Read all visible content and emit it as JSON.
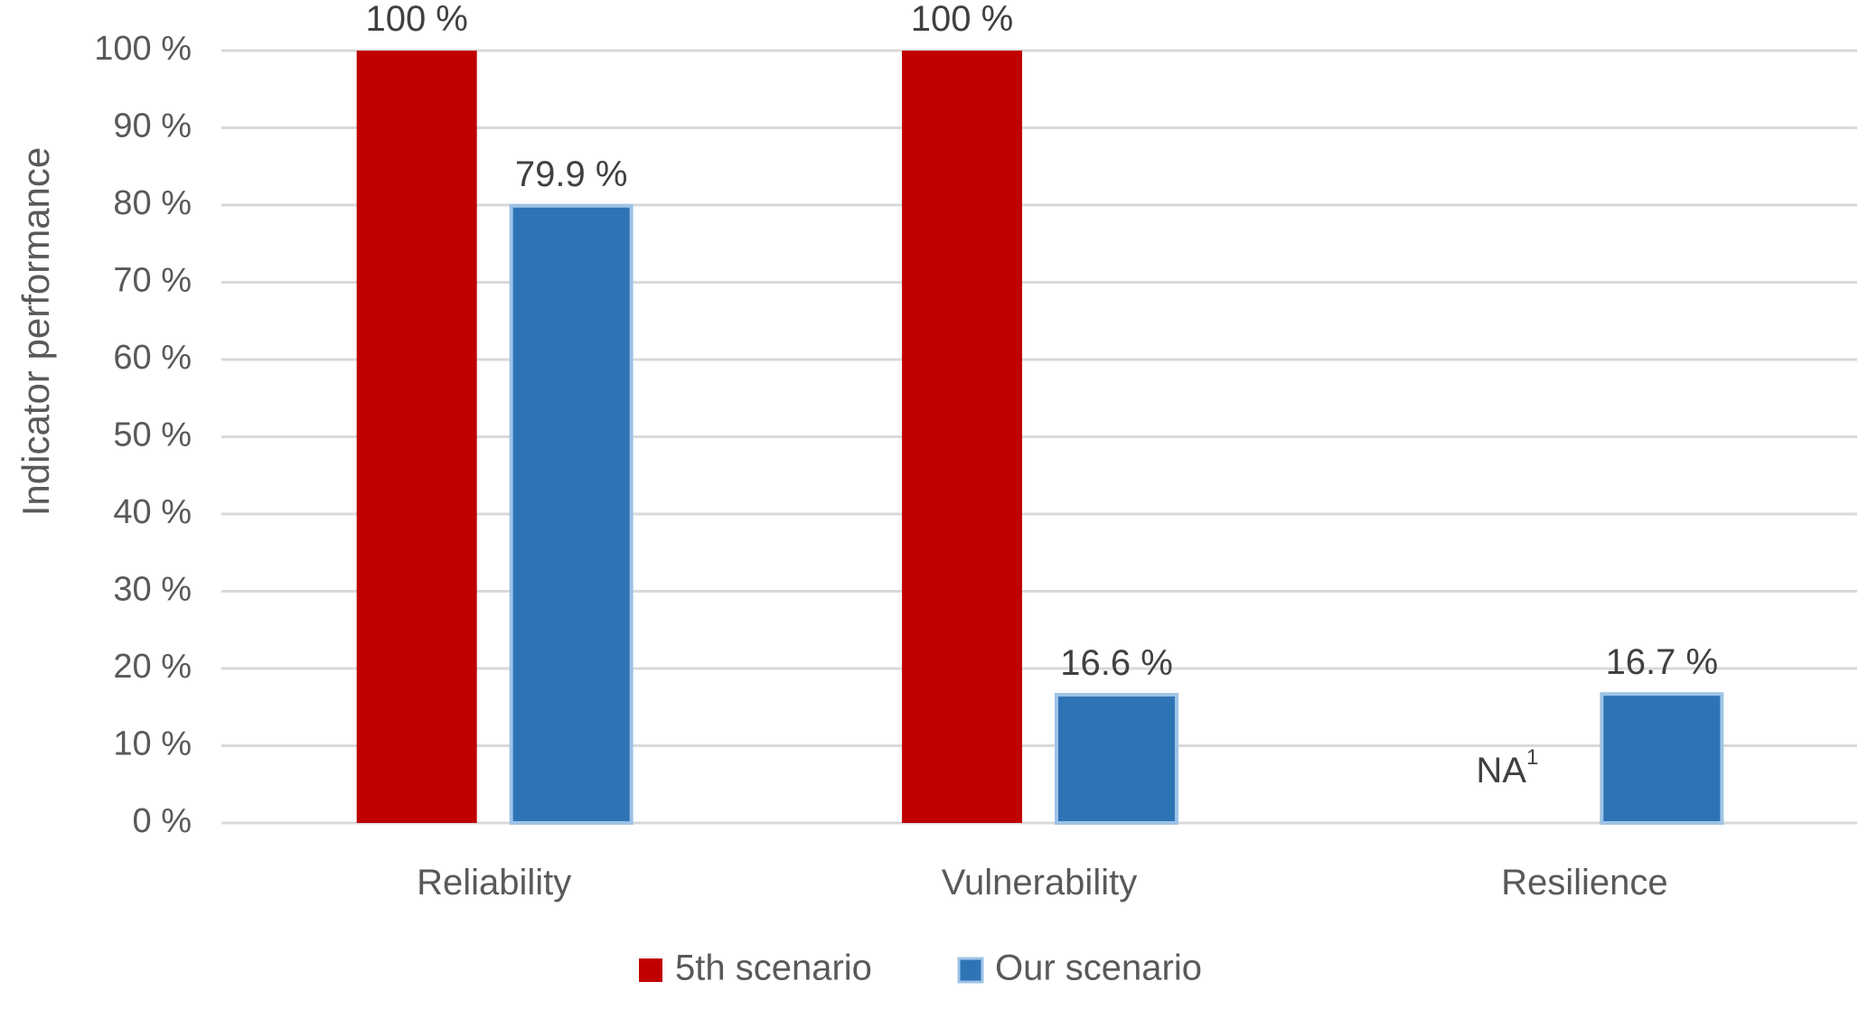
{
  "chart_data": {
    "type": "bar",
    "title": "",
    "xlabel": "",
    "ylabel": "Indicator performance",
    "ylim": [
      0,
      100
    ],
    "yticks": [
      0,
      10,
      20,
      30,
      40,
      50,
      60,
      70,
      80,
      90,
      100
    ],
    "ytick_suffix": " %",
    "grid": true,
    "legend_position": "bottom",
    "categories": [
      "Reliability",
      "Vulnerability",
      "Resilience"
    ],
    "series": [
      {
        "name": "5th scenario",
        "color": "#c00000",
        "values": [
          100,
          100,
          null
        ],
        "data_labels": [
          "100 %",
          "100 %",
          "NA"
        ],
        "data_label_sup": [
          "",
          "",
          "1"
        ]
      },
      {
        "name": "Our scenario",
        "color": "#2e74b5",
        "edge_color": "#9dc3e6",
        "values": [
          79.9,
          16.6,
          16.7
        ],
        "data_labels": [
          "79.9 %",
          "16.6 %",
          "16.7 %"
        ],
        "data_label_sup": [
          "",
          "",
          ""
        ]
      }
    ]
  }
}
